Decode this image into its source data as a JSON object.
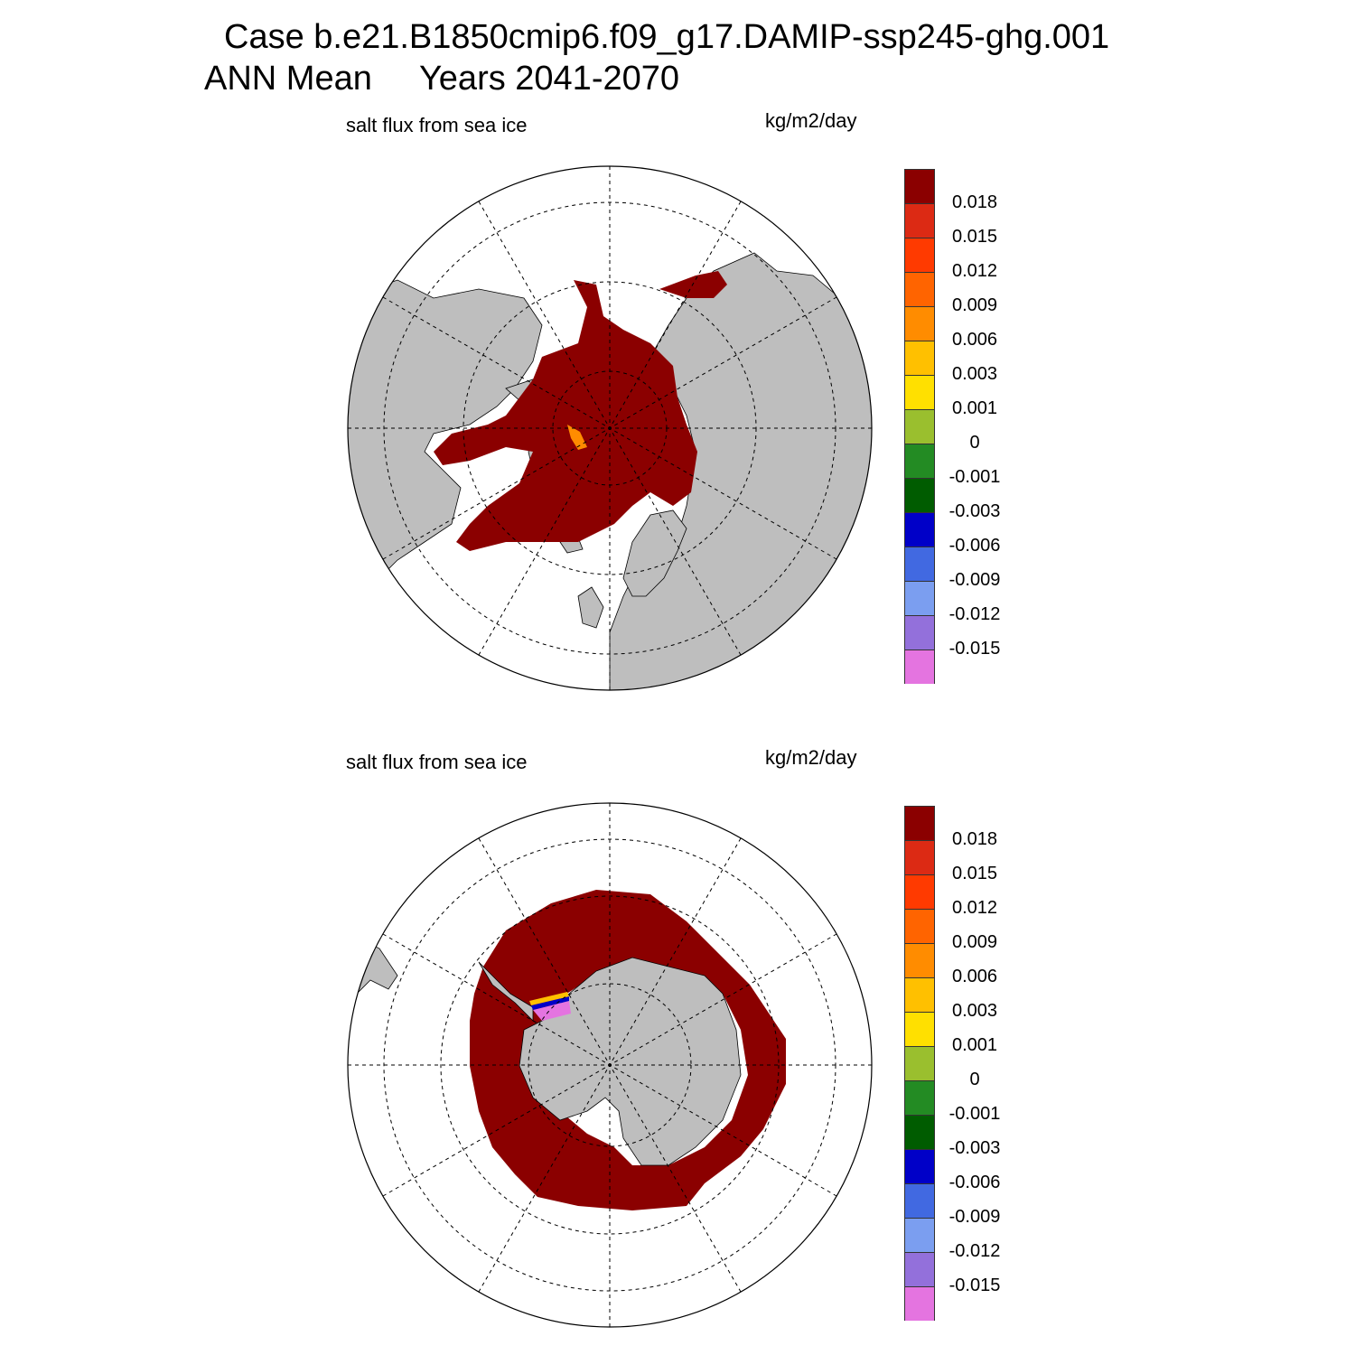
{
  "title_line1": "Case b.e21.B1850cmip6.f09_g17.DAMIP-ssp245-ghg.001",
  "title_line2": "ANN Mean     Years 2041-2070",
  "panels": [
    {
      "title": "salt flux from sea ice",
      "units": "kg/m2/day",
      "hemisphere": "north"
    },
    {
      "title": "salt flux from sea ice",
      "units": "kg/m2/day",
      "hemisphere": "south"
    }
  ],
  "colorbar": {
    "labels": [
      "0.018",
      "0.015",
      "0.012",
      "0.009",
      "0.006",
      "0.003",
      "0.001",
      "0",
      "-0.001",
      "-0.003",
      "-0.006",
      "-0.009",
      "-0.012",
      "-0.015"
    ],
    "colors": [
      "#8b0000",
      "#dc2a14",
      "#ff3a00",
      "#ff6400",
      "#ff8c00",
      "#ffc000",
      "#ffe000",
      "#9abf2e",
      "#238b23",
      "#005c00",
      "#0000c8",
      "#4169e1",
      "#7b9ef0",
      "#9370db",
      "#e474e0"
    ]
  },
  "map_colors": {
    "land": "#bebebe",
    "ice_flux": "#8b0000",
    "ocean": "#ffffff",
    "edge_orange": "#ff8c00"
  }
}
